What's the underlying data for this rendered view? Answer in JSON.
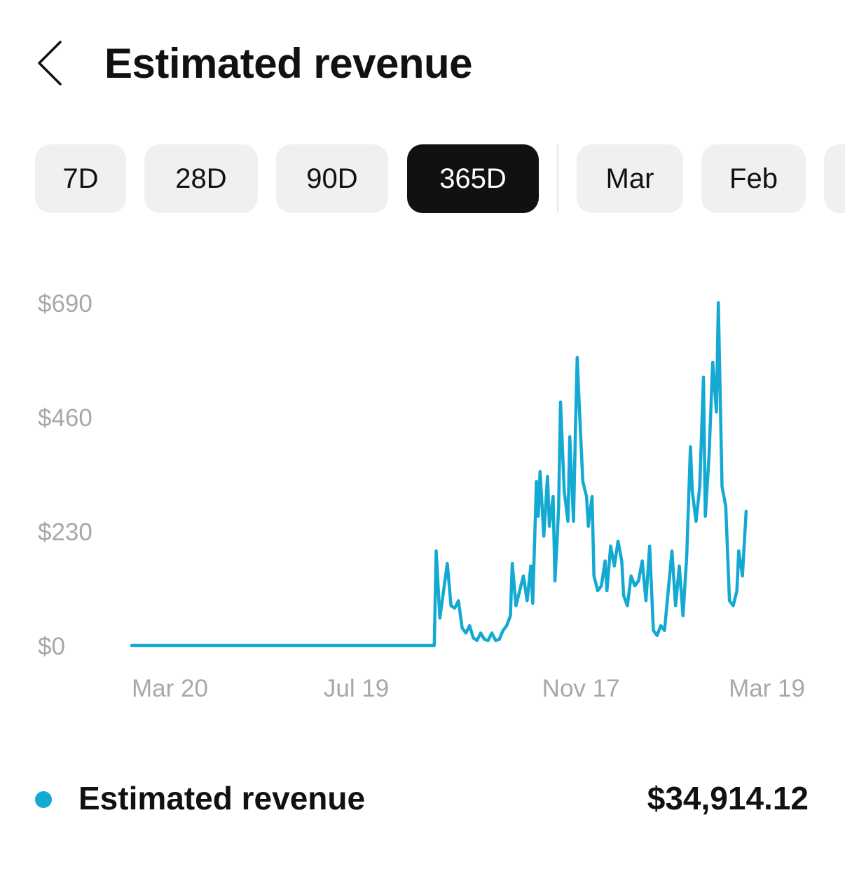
{
  "header": {
    "title": "Estimated revenue",
    "back_icon": "chevron-left-icon"
  },
  "range_tabs": [
    {
      "label": "7D",
      "selected": false
    },
    {
      "label": "28D",
      "selected": false
    },
    {
      "label": "90D",
      "selected": false
    },
    {
      "label": "365D",
      "selected": true
    },
    {
      "label": "Mar",
      "selected": false
    },
    {
      "label": "Feb",
      "selected": false
    }
  ],
  "legend": {
    "label": "Estimated revenue",
    "total": "$34,914.12"
  },
  "colors": {
    "series": "#13a9d3",
    "selected_chip_bg": "#111111",
    "chip_bg": "#f0f0f0",
    "axis_text": "#a8a8a8"
  },
  "chart_data": {
    "type": "line",
    "y_ticks": [
      "$690",
      "$460",
      "$230",
      "$0"
    ],
    "y_tick_values": [
      690,
      460,
      230,
      0
    ],
    "x_ticks": [
      {
        "label": "Mar 20",
        "date": "2023-03-20"
      },
      {
        "label": "Jul 19",
        "date": "2023-07-19"
      },
      {
        "label": "Nov 17",
        "date": "2023-11-17"
      },
      {
        "label": "Mar 19",
        "date": "2024-03-19"
      }
    ],
    "ylim": [
      0,
      690
    ],
    "xlim": [
      "2023-03-20",
      "2024-03-19"
    ],
    "grid": false,
    "series": [
      {
        "name": "Estimated revenue",
        "points": [
          [
            "2023-03-20",
            0
          ],
          [
            "2023-08-30",
            0
          ],
          [
            "2023-08-31",
            190
          ],
          [
            "2023-09-02",
            55
          ],
          [
            "2023-09-04",
            110
          ],
          [
            "2023-09-06",
            165
          ],
          [
            "2023-09-08",
            80
          ],
          [
            "2023-09-10",
            75
          ],
          [
            "2023-09-12",
            90
          ],
          [
            "2023-09-14",
            35
          ],
          [
            "2023-09-16",
            25
          ],
          [
            "2023-09-18",
            40
          ],
          [
            "2023-09-20",
            15
          ],
          [
            "2023-09-22",
            10
          ],
          [
            "2023-09-24",
            25
          ],
          [
            "2023-09-26",
            12
          ],
          [
            "2023-09-28",
            10
          ],
          [
            "2023-09-30",
            25
          ],
          [
            "2023-10-02",
            10
          ],
          [
            "2023-10-04",
            12
          ],
          [
            "2023-10-06",
            30
          ],
          [
            "2023-10-08",
            40
          ],
          [
            "2023-10-10",
            60
          ],
          [
            "2023-10-11",
            165
          ],
          [
            "2023-10-13",
            80
          ],
          [
            "2023-10-15",
            110
          ],
          [
            "2023-10-17",
            140
          ],
          [
            "2023-10-19",
            90
          ],
          [
            "2023-10-21",
            160
          ],
          [
            "2023-10-22",
            85
          ],
          [
            "2023-10-24",
            330
          ],
          [
            "2023-10-25",
            260
          ],
          [
            "2023-10-26",
            350
          ],
          [
            "2023-10-28",
            220
          ],
          [
            "2023-10-30",
            340
          ],
          [
            "2023-10-31",
            240
          ],
          [
            "2023-11-02",
            300
          ],
          [
            "2023-11-03",
            130
          ],
          [
            "2023-11-04",
            200
          ],
          [
            "2023-11-05",
            280
          ],
          [
            "2023-11-06",
            490
          ],
          [
            "2023-11-08",
            310
          ],
          [
            "2023-11-10",
            250
          ],
          [
            "2023-11-11",
            420
          ],
          [
            "2023-11-13",
            250
          ],
          [
            "2023-11-14",
            430
          ],
          [
            "2023-11-15",
            580
          ],
          [
            "2023-11-16",
            490
          ],
          [
            "2023-11-18",
            330
          ],
          [
            "2023-11-20",
            300
          ],
          [
            "2023-11-21",
            240
          ],
          [
            "2023-11-23",
            300
          ],
          [
            "2023-11-24",
            140
          ],
          [
            "2023-11-26",
            110
          ],
          [
            "2023-11-28",
            120
          ],
          [
            "2023-11-30",
            170
          ],
          [
            "2023-12-01",
            110
          ],
          [
            "2023-12-03",
            200
          ],
          [
            "2023-12-05",
            160
          ],
          [
            "2023-12-07",
            210
          ],
          [
            "2023-12-09",
            170
          ],
          [
            "2023-12-10",
            100
          ],
          [
            "2023-12-12",
            80
          ],
          [
            "2023-12-14",
            140
          ],
          [
            "2023-12-16",
            120
          ],
          [
            "2023-12-18",
            130
          ],
          [
            "2023-12-20",
            170
          ],
          [
            "2023-12-22",
            90
          ],
          [
            "2023-12-24",
            200
          ],
          [
            "2023-12-26",
            30
          ],
          [
            "2023-12-28",
            20
          ],
          [
            "2023-12-30",
            40
          ],
          [
            "2024-01-01",
            30
          ],
          [
            "2024-01-03",
            110
          ],
          [
            "2024-01-05",
            190
          ],
          [
            "2024-01-07",
            80
          ],
          [
            "2024-01-09",
            160
          ],
          [
            "2024-01-11",
            60
          ],
          [
            "2024-01-13",
            180
          ],
          [
            "2024-01-15",
            400
          ],
          [
            "2024-01-16",
            310
          ],
          [
            "2024-01-18",
            250
          ],
          [
            "2024-01-20",
            320
          ],
          [
            "2024-01-22",
            540
          ],
          [
            "2024-01-23",
            260
          ],
          [
            "2024-01-25",
            380
          ],
          [
            "2024-01-27",
            570
          ],
          [
            "2024-01-29",
            470
          ],
          [
            "2024-01-30",
            690
          ],
          [
            "2024-02-01",
            320
          ],
          [
            "2024-02-03",
            280
          ],
          [
            "2024-02-05",
            90
          ],
          [
            "2024-02-07",
            80
          ],
          [
            "2024-02-09",
            110
          ],
          [
            "2024-02-10",
            190
          ],
          [
            "2024-02-12",
            140
          ],
          [
            "2024-02-14",
            270
          ]
        ]
      }
    ]
  }
}
